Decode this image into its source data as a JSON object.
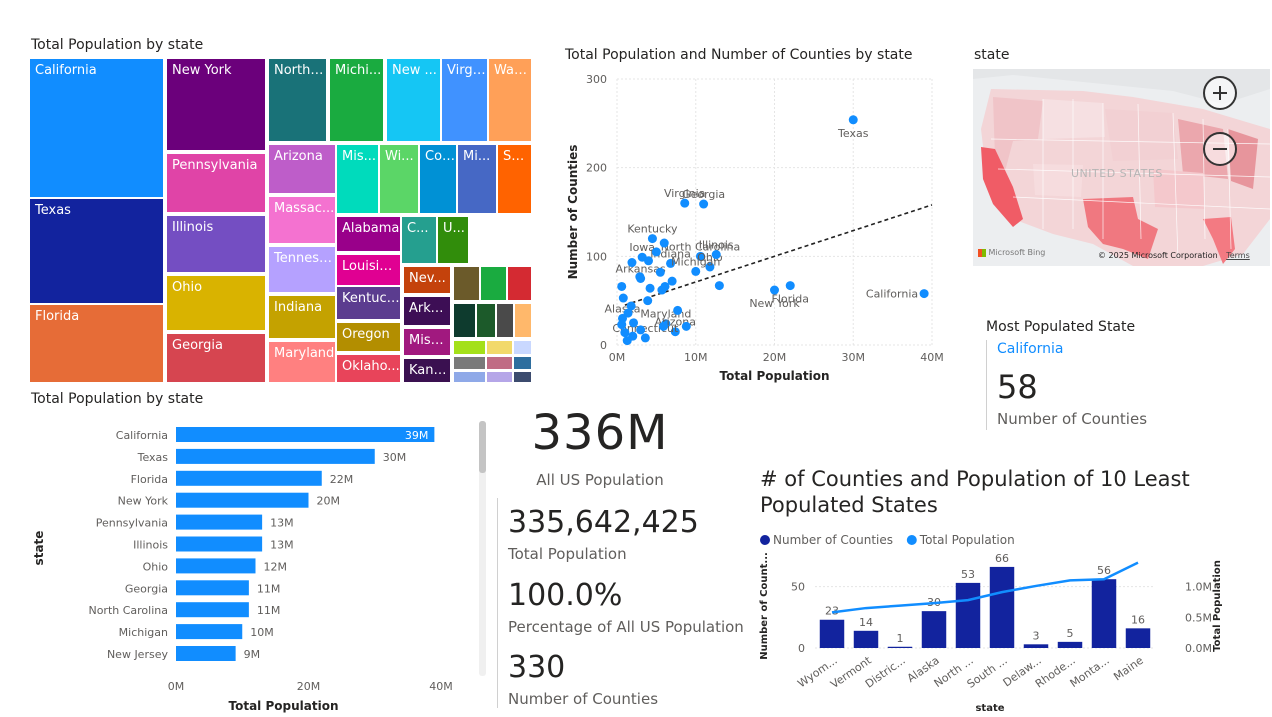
{
  "treemap": {
    "title": "Total Population by state",
    "items": [
      {
        "label": "California",
        "color": "#118DFF"
      },
      {
        "label": "Texas",
        "color": "#12239E"
      },
      {
        "label": "Florida",
        "color": "#E66C37"
      },
      {
        "label": "New York",
        "color": "#6B007B"
      },
      {
        "label": "Pennsylvania",
        "color": "#E044A7"
      },
      {
        "label": "Illinois",
        "color": "#744EC2"
      },
      {
        "label": "Ohio",
        "color": "#D9B300"
      },
      {
        "label": "Georgia",
        "color": "#D64550"
      },
      {
        "label": "North ...",
        "color": "#197278"
      },
      {
        "label": "Michi...",
        "color": "#1AAB40"
      },
      {
        "label": "New ...",
        "color": "#15C6F4"
      },
      {
        "label": "Virgi...",
        "color": "#4092FF"
      },
      {
        "label": "Was...",
        "color": "#FFA058"
      },
      {
        "label": "Arizona",
        "color": "#BE5DC9"
      },
      {
        "label": "Massac...",
        "color": "#F472D0"
      },
      {
        "label": "Tenness...",
        "color": "#B5A1FF"
      },
      {
        "label": "Indiana",
        "color": "#C4A200"
      },
      {
        "label": "Maryland",
        "color": "#FF8080"
      },
      {
        "label": "Mis...",
        "color": "#00DBBC"
      },
      {
        "label": "Wi...",
        "color": "#5BD667"
      },
      {
        "label": "Col...",
        "color": "#0091D5"
      },
      {
        "label": "Mi...",
        "color": "#4668C5"
      },
      {
        "label": "So...",
        "color": "#FF6300"
      },
      {
        "label": "Alabama",
        "color": "#99008A"
      },
      {
        "label": "C...",
        "color": "#259F8F"
      },
      {
        "label": "U...",
        "color": "#318D0B"
      },
      {
        "label": "Louisiana",
        "color": "#E00092"
      },
      {
        "label": "Kentucky",
        "color": "#5B3C8F"
      },
      {
        "label": "Oregon",
        "color": "#B38E00"
      },
      {
        "label": "Oklaho...",
        "color": "#E8445A"
      },
      {
        "label": "Nev...",
        "color": "#C4420C"
      },
      {
        "label": "Arka...",
        "color": "#3D0E55"
      },
      {
        "label": "Missi...",
        "color": "#A1197F"
      },
      {
        "label": "Kans...",
        "color": "#3A1050"
      }
    ]
  },
  "scatter": {
    "title": "Total Population and Number of Counties by state",
    "chart_data": {
      "type": "scatter",
      "xlabel": "Total Population",
      "ylabel": "Number of Counties",
      "xlim": [
        0,
        40000000
      ],
      "ylim": [
        0,
        300
      ],
      "x_ticks": [
        "0M",
        "10M",
        "20M",
        "30M",
        "40M"
      ],
      "y_ticks": [
        "0",
        "100",
        "200",
        "300"
      ],
      "trendline": true,
      "points": [
        {
          "label": "Texas",
          "x": 30000000,
          "y": 254
        },
        {
          "label": "California",
          "x": 39000000,
          "y": 58
        },
        {
          "label": "Florida",
          "x": 22000000,
          "y": 67
        },
        {
          "label": "New York",
          "x": 20000000,
          "y": 62
        },
        {
          "label": "Virginia",
          "x": 8600000,
          "y": 160
        },
        {
          "label": "Georgia",
          "x": 11000000,
          "y": 159
        },
        {
          "label": "Kentucky",
          "x": 4500000,
          "y": 120
        },
        {
          "label": "Indiana",
          "x": 6800000,
          "y": 92
        },
        {
          "label": "North Carolina",
          "x": 10600000,
          "y": 100
        },
        {
          "label": "Ohio",
          "x": 11800000,
          "y": 88
        },
        {
          "label": "Illinois",
          "x": 12600000,
          "y": 102
        },
        {
          "label": "Iowa",
          "x": 3200000,
          "y": 99
        },
        {
          "label": "Michigan",
          "x": 10000000,
          "y": 83
        },
        {
          "label": "Arkansas",
          "x": 3000000,
          "y": 75
        },
        {
          "label": "Maryland",
          "x": 6200000,
          "y": 24
        },
        {
          "label": "Alaska",
          "x": 700000,
          "y": 30
        },
        {
          "label": "Arizona",
          "x": 7400000,
          "y": 15
        },
        {
          "label": "Connecticut",
          "x": 3600000,
          "y": 8
        },
        {
          "label": "",
          "x": 13000000,
          "y": 67
        },
        {
          "label": "",
          "x": 6000000,
          "y": 115
        },
        {
          "label": "",
          "x": 5000000,
          "y": 105
        },
        {
          "label": "",
          "x": 4000000,
          "y": 95
        },
        {
          "label": "",
          "x": 5500000,
          "y": 82
        },
        {
          "label": "",
          "x": 7000000,
          "y": 72
        },
        {
          "label": "",
          "x": 4200000,
          "y": 64
        },
        {
          "label": "",
          "x": 1900000,
          "y": 93
        },
        {
          "label": "",
          "x": 2900000,
          "y": 77
        },
        {
          "label": "",
          "x": 6100000,
          "y": 66
        },
        {
          "label": "",
          "x": 5700000,
          "y": 62
        },
        {
          "label": "",
          "x": 3900000,
          "y": 50
        },
        {
          "label": "",
          "x": 1800000,
          "y": 44
        },
        {
          "label": "",
          "x": 800000,
          "y": 53
        },
        {
          "label": "",
          "x": 600000,
          "y": 66
        },
        {
          "label": "",
          "x": 1400000,
          "y": 36
        },
        {
          "label": "",
          "x": 2100000,
          "y": 25
        },
        {
          "label": "",
          "x": 1000000,
          "y": 14
        },
        {
          "label": "",
          "x": 1300000,
          "y": 5
        },
        {
          "label": "",
          "x": 600000,
          "y": 23
        },
        {
          "label": "",
          "x": 3000000,
          "y": 17
        },
        {
          "label": "",
          "x": 2000000,
          "y": 10
        },
        {
          "label": "",
          "x": 5900000,
          "y": 21
        },
        {
          "label": "",
          "x": 8800000,
          "y": 21
        },
        {
          "label": "",
          "x": 7700000,
          "y": 39
        }
      ]
    }
  },
  "map": {
    "title": "state",
    "country_label": "UNITED STATES",
    "bing_label": "Microsoft Bing",
    "copyright": "© 2025 Microsoft Corporation",
    "terms": "Terms"
  },
  "most_populated": {
    "title": "Most Populated State",
    "state": "California",
    "value": "58",
    "value_label": "Number of Counties"
  },
  "bar": {
    "title": "Total Population by state",
    "chart_data": {
      "type": "bar",
      "orientation": "horizontal",
      "categories": [
        "California",
        "Texas",
        "Florida",
        "New York",
        "Pennsylvania",
        "Illinois",
        "Ohio",
        "Georgia",
        "North Carolina",
        "Michigan",
        "New Jersey"
      ],
      "values": [
        39,
        30,
        22,
        20,
        13,
        13,
        12,
        11,
        11,
        10,
        9
      ],
      "data_labels": [
        "39M",
        "30M",
        "22M",
        "20M",
        "13M",
        "13M",
        "12M",
        "11M",
        "11M",
        "10M",
        "9M"
      ],
      "xlabel": "Total Population",
      "ylabel": "state",
      "xlim": [
        0,
        40
      ],
      "x_ticks": [
        "0M",
        "20M",
        "40M"
      ],
      "color": "#118DFF"
    }
  },
  "cards": {
    "all_us_value": "336M",
    "all_us_label": "All US Population",
    "total_pop_value": "335,642,425",
    "total_pop_label": "Total Population",
    "pct_value": "100.0%",
    "pct_label": "Percentage of All US Population",
    "counties_value": "330",
    "counties_label": "Number of Counties"
  },
  "combo": {
    "title": "# of Counties and Population of 10 Least Populated States",
    "chart_data": {
      "type": "bar",
      "categories": [
        "Wyom...",
        "Vermont",
        "Distric...",
        "Alaska",
        "North ...",
        "South ...",
        "Delaw...",
        "Rhode...",
        "Monta...",
        "Maine"
      ],
      "series": [
        {
          "name": "Number of Counties",
          "values": [
            23,
            14,
            1,
            30,
            53,
            66,
            3,
            5,
            56,
            16
          ],
          "color": "#12239E"
        },
        {
          "name": "Total Population",
          "values": [
            0.58,
            0.65,
            0.69,
            0.73,
            0.78,
            0.91,
            1.01,
            1.1,
            1.12,
            1.39
          ],
          "color": "#118DFF",
          "unit": "M"
        }
      ],
      "data_labels": [
        "23",
        "14",
        "1",
        "30",
        "53",
        "66",
        "3",
        "5",
        "56",
        "16"
      ],
      "xlabel": "state",
      "ylabel_left": "Number of Count...",
      "ylabel_right": "Total Population",
      "ylim_left": [
        0,
        70
      ],
      "ylim_right": [
        0,
        1.4
      ],
      "left_ticks": [
        "0",
        "50"
      ],
      "right_ticks": [
        "0.0M",
        "0.5M",
        "1.0M"
      ]
    }
  }
}
